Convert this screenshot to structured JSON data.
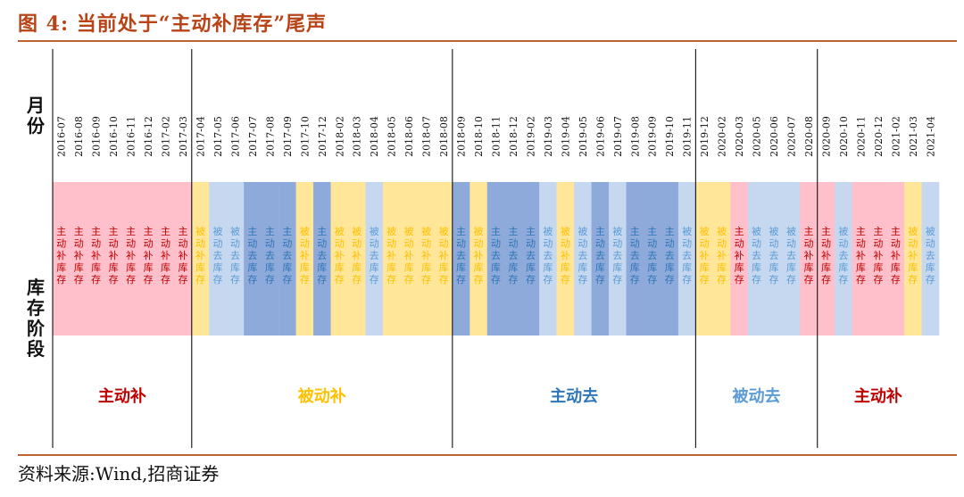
{
  "figure": {
    "title": "图 4:  当前处于“主动补库存”尾声",
    "source": "资料来源:Wind,招商证券"
  },
  "colors": {
    "主动补库存": "#ffc0cb",
    "被动补库存": "#ffe699",
    "主动去库存": "#8eaadb",
    "被动去库存": "#c5d8f0",
    "text_主动补": "#c00000",
    "text_被动补": "#ffc000",
    "text_主动去": "#2e75b6",
    "text_被动去": "#5b9bd5",
    "title": "#b84317",
    "rule": "#c0622f"
  },
  "chart_data": {
    "type": "table",
    "row_labels": [
      "月份",
      "库存阶段"
    ],
    "months": [
      "2016-07",
      "2016-08",
      "2016-09",
      "2016-10",
      "2016-11",
      "2016-12",
      "2017-02",
      "2017-03",
      "2017-04",
      "2017-05",
      "2017-06",
      "2017-07",
      "2017-08",
      "2017-09",
      "2017-10",
      "2017-12",
      "2018-02",
      "2018-03",
      "2018-04",
      "2018-05",
      "2018-06",
      "2018-07",
      "2018-08",
      "2018-09",
      "2018-10",
      "2018-11",
      "2018-12",
      "2019-02",
      "2019-03",
      "2019-04",
      "2019-05",
      "2019-06",
      "2019-07",
      "2019-08",
      "2019-09",
      "2019-10",
      "2019-11",
      "2019-12",
      "2020-02",
      "2020-03",
      "2020-05",
      "2020-06",
      "2020-07",
      "2020-08",
      "2020-09",
      "2020-10",
      "2020-11",
      "2020-12",
      "2021-02",
      "2021-03",
      "2021-04"
    ],
    "stages": [
      "主动补库存",
      "主动补库存",
      "主动补库存",
      "主动补库存",
      "主动补库存",
      "主动补库存",
      "主动补库存",
      "主动补库存",
      "被动补库存",
      "被动去库存",
      "被动去库存",
      "主动去库存",
      "主动去库存",
      "主动去库存",
      "被动补库存",
      "主动去库存",
      "被动补库存",
      "被动补库存",
      "被动去库存",
      "被动补库存",
      "被动补库存",
      "被动补库存",
      "被动补库存",
      "主动去库存",
      "被动补库存",
      "主动去库存",
      "主动去库存",
      "主动去库存",
      "被动去库存",
      "被动补库存",
      "被动去库存",
      "主动去库存",
      "被动去库存",
      "主动去库存",
      "主动去库存",
      "主动去库存",
      "被动去库存",
      "被动补库存",
      "被动补库存",
      "主动补库存",
      "被动去库存",
      "被动去库存",
      "被动去库存",
      "主动补库存",
      "主动补库存",
      "被动去库存",
      "主动补库存",
      "主动补库存",
      "主动补库存",
      "被动补库存",
      "被动去库存"
    ],
    "phases": [
      {
        "label": "主动补",
        "start": 0,
        "end": 8,
        "color_key": "text_主动补"
      },
      {
        "label": "被动补",
        "start": 8,
        "end": 23,
        "color_key": "text_被动补"
      },
      {
        "label": "主动去",
        "start": 23,
        "end": 37,
        "color_key": "text_主动去"
      },
      {
        "label": "被动去",
        "start": 37,
        "end": 44,
        "color_key": "text_被动去"
      },
      {
        "label": "主动补",
        "start": 44,
        "end": 51,
        "color_key": "text_主动补"
      }
    ]
  }
}
